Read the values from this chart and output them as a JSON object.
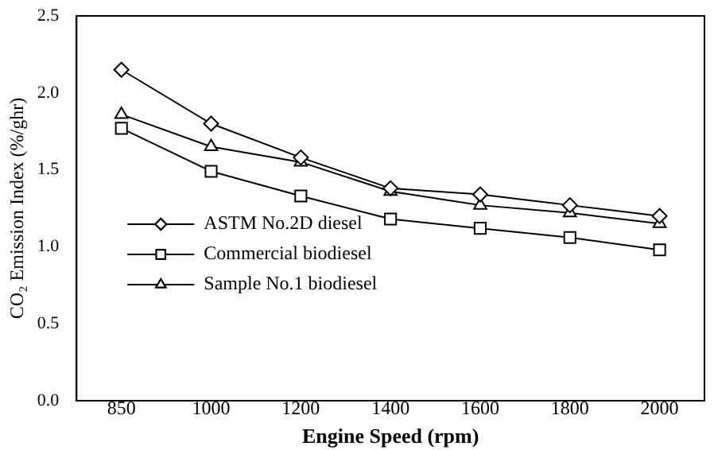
{
  "chart_data": {
    "type": "line",
    "xlabel": "Engine Speed (rpm)",
    "ylabel": "CO₂ Emission Index (%/ghr)",
    "categories": [
      "850",
      "1000",
      "1200",
      "1400",
      "1600",
      "1800",
      "2000"
    ],
    "series": [
      {
        "name": "ASTM No.2D diesel",
        "color": "#000000",
        "marker": "diamond",
        "values": [
          2.15,
          1.8,
          1.58,
          1.38,
          1.34,
          1.27,
          1.2
        ]
      },
      {
        "name": "Commercial biodiesel",
        "color": "#000000",
        "marker": "square",
        "values": [
          1.77,
          1.49,
          1.33,
          1.18,
          1.12,
          1.06,
          0.98
        ]
      },
      {
        "name": "Sample No.1 biodiesel",
        "color": "#000000",
        "marker": "triangle",
        "values": [
          1.86,
          1.65,
          1.55,
          1.36,
          1.27,
          1.22,
          1.15
        ]
      }
    ],
    "ylim": [
      0,
      2.5
    ],
    "yticks": [
      {
        "value": 0,
        "label": "0.0"
      },
      {
        "value": 0.5,
        "label": "0.5"
      },
      {
        "value": 1,
        "label": "1.0"
      },
      {
        "value": 1.5,
        "label": "1.5"
      },
      {
        "value": 2,
        "label": "2.0"
      },
      {
        "value": 2.5,
        "label": "2.5"
      }
    ],
    "grid": false,
    "legend": "left",
    "line_style": "solid"
  }
}
